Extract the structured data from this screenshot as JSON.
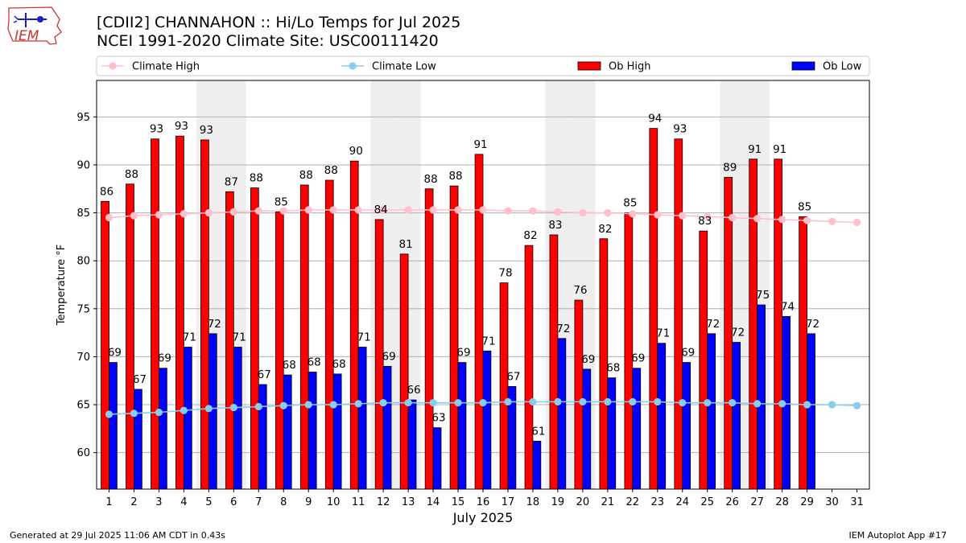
{
  "header": {
    "title": "[CDII2] CHANNAHON :: Hi/Lo Temps for Jul 2025",
    "subtitle": "NCEI 1991-2020 Climate Site: USC00111420",
    "logo_text": "IEM"
  },
  "footer": {
    "generated": "Generated at 29 Jul 2025 11:06 AM CDT in 0.43s",
    "app": "IEM Autoplot App #17"
  },
  "colors": {
    "ob_high": "#ff0000",
    "ob_low": "#0000ff",
    "climate_high": "#ffc0cb",
    "climate_low": "#87ceeb",
    "weekend_band": "#eeeeee",
    "grid": "#b0b0b0"
  },
  "chart_data": {
    "type": "bar",
    "xlabel": "July 2025",
    "ylabel": "Temperature °F",
    "ylim": [
      56.2,
      98.8
    ],
    "yticks": [
      60,
      65,
      70,
      75,
      80,
      85,
      90,
      95
    ],
    "grid": true,
    "legend_placement": "top, above plot",
    "legend": [
      "Climate High",
      "Climate Low",
      "Ob High",
      "Ob Low"
    ],
    "categories": [
      "1",
      "2",
      "3",
      "4",
      "5",
      "6",
      "7",
      "8",
      "9",
      "10",
      "11",
      "12",
      "13",
      "14",
      "15",
      "16",
      "17",
      "18",
      "19",
      "20",
      "21",
      "22",
      "23",
      "24",
      "25",
      "26",
      "27",
      "28",
      "29",
      "30",
      "31"
    ],
    "weekend_days": [
      5,
      6,
      12,
      13,
      19,
      20,
      26,
      27
    ],
    "series": [
      {
        "name": "Ob High",
        "type": "bar",
        "values": [
          86.2,
          88,
          92.7,
          93,
          92.6,
          87.2,
          87.6,
          85.1,
          87.9,
          88.4,
          90.4,
          84.3,
          80.7,
          87.5,
          87.8,
          91.1,
          77.7,
          81.6,
          82.7,
          75.9,
          82.3,
          85,
          93.8,
          92.7,
          83.1,
          88.7,
          90.6,
          90.6,
          84.6,
          null,
          null
        ],
        "labels": [
          "86",
          "88",
          "93",
          "93",
          "93",
          "87",
          "88",
          "85",
          "88",
          "88",
          "90",
          "84",
          "81",
          "88",
          "88",
          "91",
          "78",
          "82",
          "83",
          "76",
          "82",
          "85",
          "94",
          "93",
          "83",
          "89",
          "91",
          "91",
          "85",
          null,
          null
        ]
      },
      {
        "name": "Ob Low",
        "type": "bar",
        "values": [
          69.4,
          66.6,
          68.8,
          71,
          72.4,
          71,
          67.1,
          68.1,
          68.4,
          68.2,
          71,
          69,
          65.5,
          62.6,
          69.4,
          70.6,
          66.9,
          61.2,
          71.9,
          68.7,
          67.8,
          68.8,
          71.4,
          69.4,
          72.4,
          71.5,
          75.4,
          74.2,
          72.4,
          null,
          null
        ],
        "labels": [
          "69",
          "67",
          "69",
          "71",
          "72",
          "71",
          "67",
          "68",
          "68",
          "68",
          "71",
          "69",
          "66",
          "63",
          "69",
          "71",
          "67",
          "61",
          "72",
          "69",
          "68",
          "69",
          "71",
          "69",
          "72",
          "72",
          "75",
          "74",
          "72",
          null,
          null
        ]
      },
      {
        "name": "Climate High",
        "type": "line",
        "values": [
          84.5,
          84.7,
          84.8,
          84.9,
          85.0,
          85.1,
          85.2,
          85.2,
          85.3,
          85.3,
          85.3,
          85.3,
          85.3,
          85.3,
          85.3,
          85.3,
          85.2,
          85.2,
          85.1,
          85.0,
          85.0,
          84.9,
          84.8,
          84.7,
          84.6,
          84.5,
          84.4,
          84.3,
          84.2,
          84.1,
          84.0
        ]
      },
      {
        "name": "Climate Low",
        "type": "line",
        "values": [
          64.0,
          64.1,
          64.2,
          64.4,
          64.6,
          64.7,
          64.8,
          64.9,
          65.0,
          65.0,
          65.1,
          65.2,
          65.2,
          65.2,
          65.2,
          65.2,
          65.3,
          65.3,
          65.3,
          65.3,
          65.3,
          65.3,
          65.3,
          65.2,
          65.2,
          65.2,
          65.1,
          65.1,
          65.0,
          65.0,
          64.9
        ]
      }
    ]
  }
}
